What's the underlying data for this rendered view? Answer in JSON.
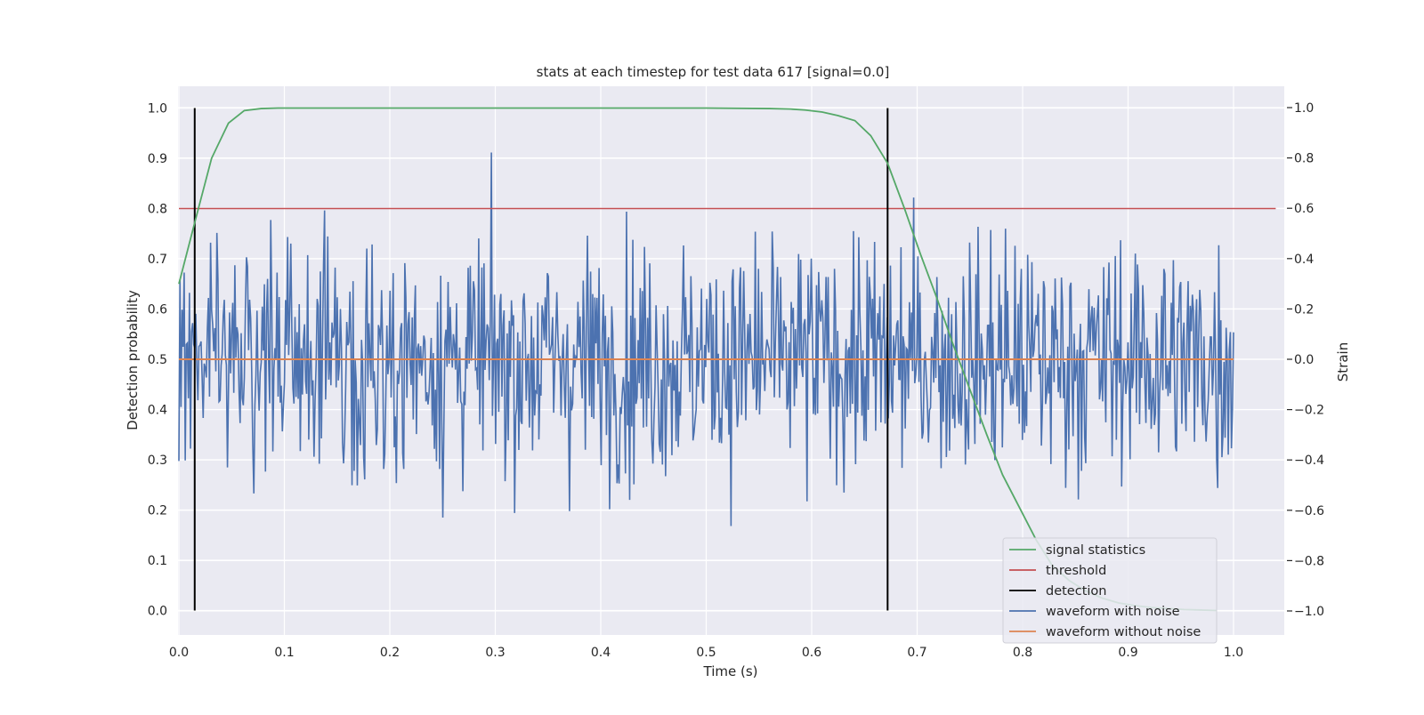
{
  "chart_data": {
    "type": "line",
    "title": "stats at each timestep for test data 617 [signal=0.0]",
    "xlabel": "Time (s)",
    "ylabel": "Detection probability",
    "y2label": "Strain",
    "xlim": [
      0.0,
      1.05
    ],
    "ylim": [
      -0.05,
      1.05
    ],
    "y2lim": [
      -1.1,
      1.1
    ],
    "xticks": [
      "0.0",
      "0.1",
      "0.2",
      "0.3",
      "0.4",
      "0.5",
      "0.6",
      "0.7",
      "0.8",
      "0.9",
      "1.0"
    ],
    "yticks": [
      "0.0",
      "0.1",
      "0.2",
      "0.3",
      "0.4",
      "0.5",
      "0.6",
      "0.7",
      "0.8",
      "0.9",
      "1.0"
    ],
    "y2ticks": [
      "−1.0",
      "−0.8",
      "−0.6",
      "−0.4",
      "−0.2",
      "0.0",
      "0.2",
      "0.4",
      "0.6",
      "0.8",
      "1.0"
    ],
    "grid": true,
    "legend_position": "bottom-right",
    "signal_statistics": {
      "name": "signal statistics",
      "color": "#55a868",
      "x": [
        0.0,
        0.016,
        0.031,
        0.047,
        0.062,
        0.078,
        0.094,
        0.109,
        0.125,
        0.2,
        0.3,
        0.4,
        0.5,
        0.56,
        0.58,
        0.594,
        0.61,
        0.625,
        0.641,
        0.656,
        0.672,
        0.688,
        0.703,
        0.719,
        0.734,
        0.75,
        0.766,
        0.781,
        0.797,
        0.813,
        0.828,
        0.844,
        0.859,
        0.875,
        0.891,
        0.906,
        0.922,
        0.938,
        0.953,
        0.969,
        0.984
      ],
      "y": [
        0.65,
        0.78,
        0.9,
        0.97,
        0.995,
        0.999,
        1.0,
        1.0,
        1.0,
        1.0,
        1.0,
        1.0,
        1.0,
        0.999,
        0.998,
        0.996,
        0.992,
        0.985,
        0.975,
        0.945,
        0.89,
        0.8,
        0.71,
        0.62,
        0.53,
        0.44,
        0.35,
        0.27,
        0.205,
        0.14,
        0.09,
        0.06,
        0.04,
        0.025,
        0.015,
        0.01,
        0.006,
        0.004,
        0.002,
        0.001,
        0.0
      ]
    },
    "threshold": {
      "name": "threshold",
      "color": "#c44e52",
      "y": 0.8,
      "x": [
        0.0,
        1.04
      ]
    },
    "detection": {
      "name": "detection",
      "color": "#000000",
      "x": [
        0.015,
        0.672
      ],
      "y": [
        0.0,
        1.0
      ]
    },
    "waveform_with_noise": {
      "name": "waveform with noise",
      "color": "#4c72b0",
      "x_range": [
        0.0,
        1.0
      ],
      "n_points": 1000,
      "amplitude_range": [
        -1.0,
        1.0
      ]
    },
    "waveform_without_noise": {
      "name": "waveform without noise",
      "color": "#dd8452",
      "value": 0.0,
      "x": [
        0.0,
        1.0
      ]
    },
    "legend": [
      "signal statistics",
      "threshold",
      "detection",
      "waveform with noise",
      "waveform without noise"
    ]
  }
}
